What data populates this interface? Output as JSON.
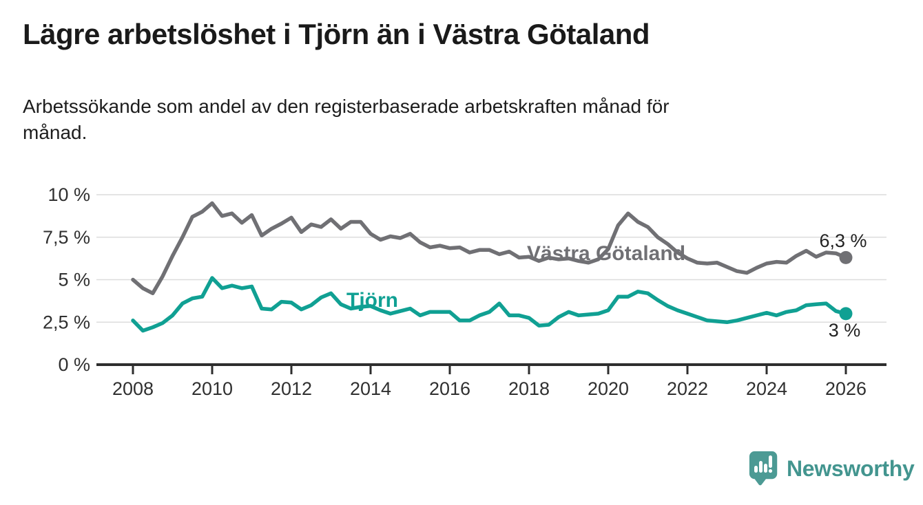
{
  "header": {
    "title": "Lägre arbetslöshet i Tjörn än i Västra Götaland",
    "subtitle_lines": [
      "Arbetssökande som andel av den registerbaserade arbetskraften månad för",
      "månad."
    ]
  },
  "chart_data": {
    "type": "line",
    "title": "Lägre arbetslöshet i Tjörn än i Västra Götaland",
    "xlabel": "",
    "ylabel": "",
    "grid": "horizontal",
    "xlim": [
      2007.1,
      2027.0
    ],
    "ylim": [
      0,
      10.5
    ],
    "x_ticks": [
      2008,
      2010,
      2012,
      2014,
      2016,
      2018,
      2020,
      2022,
      2024,
      2026
    ],
    "y_ticks": [
      {
        "value": 0,
        "label": "0 %"
      },
      {
        "value": 2.5,
        "label": "2,5 %"
      },
      {
        "value": 5,
        "label": "5 %"
      },
      {
        "value": 7.5,
        "label": "7,5 %"
      },
      {
        "value": 10,
        "label": "10 %"
      }
    ],
    "x_start": 2008,
    "x_step_years": 0.25,
    "series": [
      {
        "name": "Västra Götaland",
        "color": "#707074",
        "end_label": "6,3 %",
        "values": [
          5.0,
          4.5,
          4.2,
          5.2,
          6.4,
          7.5,
          8.7,
          9.0,
          9.5,
          8.75,
          8.9,
          8.35,
          8.8,
          7.6,
          8.0,
          8.3,
          8.65,
          7.8,
          8.25,
          8.1,
          8.55,
          8.0,
          8.4,
          8.4,
          7.7,
          7.35,
          7.55,
          7.45,
          7.7,
          7.2,
          6.9,
          7.0,
          6.85,
          6.9,
          6.6,
          6.75,
          6.75,
          6.5,
          6.65,
          6.3,
          6.35,
          6.1,
          6.3,
          6.2,
          6.25,
          6.1,
          6.0,
          6.2,
          6.8,
          8.2,
          8.9,
          8.4,
          8.1,
          7.5,
          7.1,
          6.6,
          6.25,
          6.0,
          5.95,
          6.0,
          5.75,
          5.5,
          5.4,
          5.7,
          5.95,
          6.05,
          6.0,
          6.4,
          6.7,
          6.35,
          6.6,
          6.55,
          6.3
        ]
      },
      {
        "name": "Tjörn",
        "color": "#10a093",
        "end_label": "3 %",
        "values": [
          2.6,
          2.0,
          2.2,
          2.45,
          2.9,
          3.6,
          3.9,
          4.0,
          5.1,
          4.5,
          4.65,
          4.5,
          4.6,
          3.3,
          3.25,
          3.7,
          3.65,
          3.25,
          3.5,
          3.95,
          4.2,
          3.55,
          3.3,
          3.4,
          3.45,
          3.2,
          3.0,
          3.15,
          3.3,
          2.9,
          3.1,
          3.1,
          3.1,
          2.6,
          2.6,
          2.9,
          3.1,
          3.6,
          2.9,
          2.9,
          2.75,
          2.3,
          2.35,
          2.8,
          3.1,
          2.9,
          2.95,
          3.0,
          3.2,
          4.0,
          4.0,
          4.3,
          4.2,
          3.8,
          3.45,
          3.2,
          3.0,
          2.8,
          2.6,
          2.55,
          2.5,
          2.6,
          2.75,
          2.9,
          3.05,
          2.9,
          3.1,
          3.2,
          3.5,
          3.55,
          3.6,
          3.15,
          3.0
        ]
      }
    ]
  },
  "footer": {
    "brand": "Newsworthy",
    "brand_color": "#43958f"
  }
}
